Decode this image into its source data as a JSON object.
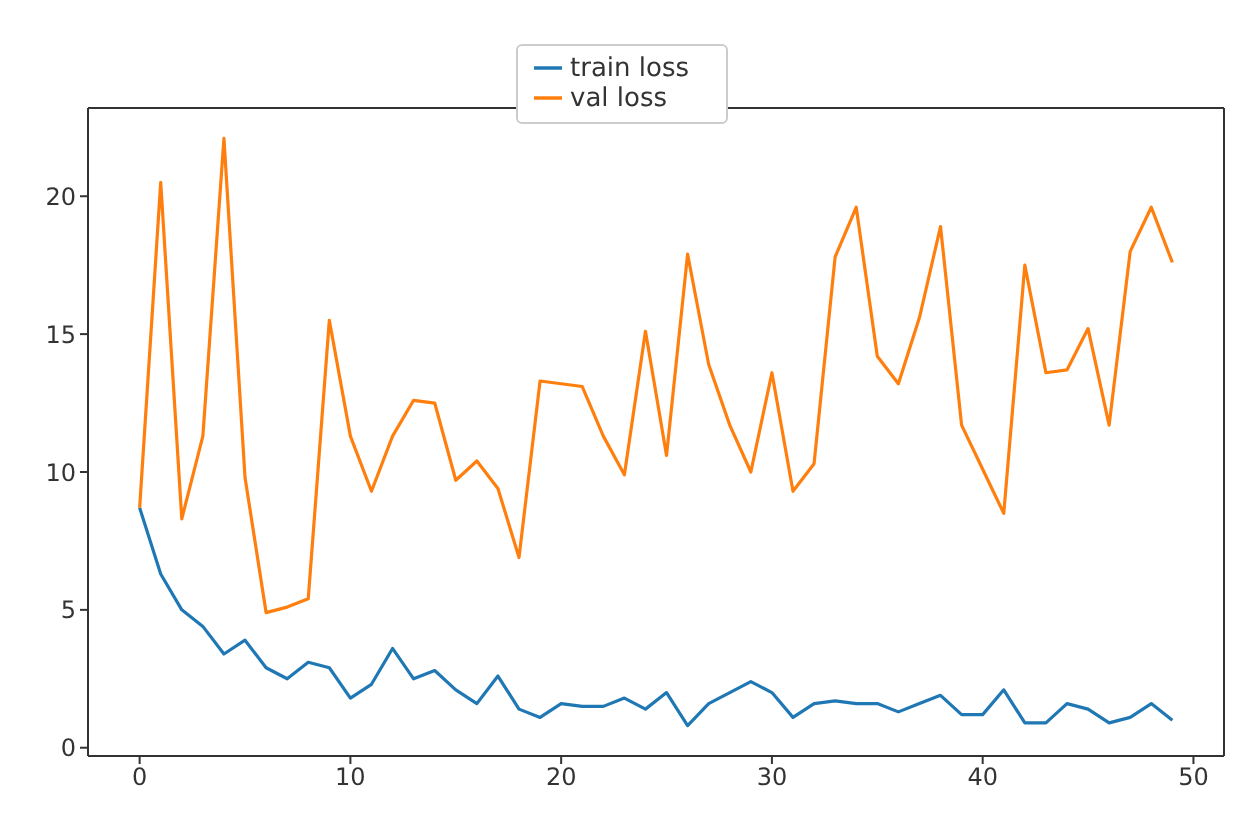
{
  "chart_data": {
    "type": "line",
    "x": [
      0,
      1,
      2,
      3,
      4,
      5,
      6,
      7,
      8,
      9,
      10,
      11,
      12,
      13,
      14,
      15,
      16,
      17,
      18,
      19,
      20,
      21,
      22,
      23,
      24,
      25,
      26,
      27,
      28,
      29,
      30,
      31,
      32,
      33,
      34,
      35,
      36,
      37,
      38,
      39,
      40,
      41,
      42,
      43,
      44,
      45,
      46,
      47,
      48,
      49
    ],
    "series": [
      {
        "name": "train loss",
        "color": "#1f77b4",
        "values": [
          8.7,
          6.3,
          5.0,
          4.4,
          3.4,
          3.9,
          2.9,
          2.5,
          3.1,
          2.9,
          1.8,
          2.3,
          3.6,
          2.5,
          2.8,
          2.1,
          1.6,
          2.6,
          1.4,
          1.1,
          1.6,
          1.5,
          1.5,
          1.8,
          1.4,
          2.0,
          0.8,
          1.6,
          2.0,
          2.4,
          2.0,
          1.1,
          1.6,
          1.7,
          1.6,
          1.6,
          1.3,
          1.6,
          1.9,
          1.2,
          1.2,
          2.1,
          0.9,
          0.9,
          1.6,
          1.4,
          0.9,
          1.1,
          1.6,
          1.0
        ]
      },
      {
        "name": "val loss",
        "color": "#ff7f0e",
        "values": [
          8.7,
          20.5,
          8.3,
          11.3,
          22.1,
          9.8,
          4.9,
          5.1,
          5.4,
          15.5,
          11.3,
          9.3,
          11.3,
          12.6,
          12.5,
          9.7,
          10.4,
          9.4,
          6.9,
          13.3,
          13.2,
          13.1,
          11.3,
          9.9,
          15.1,
          10.6,
          17.9,
          13.9,
          11.7,
          10.0,
          13.6,
          9.3,
          10.3,
          17.8,
          19.6,
          14.2,
          13.2,
          15.6,
          18.9,
          11.7,
          10.1,
          8.5,
          17.5,
          13.6,
          13.7,
          15.2,
          11.7,
          18.0,
          19.6,
          17.6
        ]
      }
    ],
    "xlim": [
      -2.45,
      51.45
    ],
    "xticks": [
      0,
      10,
      20,
      30,
      40,
      50
    ],
    "ylim": [
      -0.3,
      23.2
    ],
    "yticks": [
      0,
      5,
      10,
      15,
      20
    ],
    "legend": "top",
    "grid": false,
    "marker": "none",
    "line_style": "solid"
  }
}
